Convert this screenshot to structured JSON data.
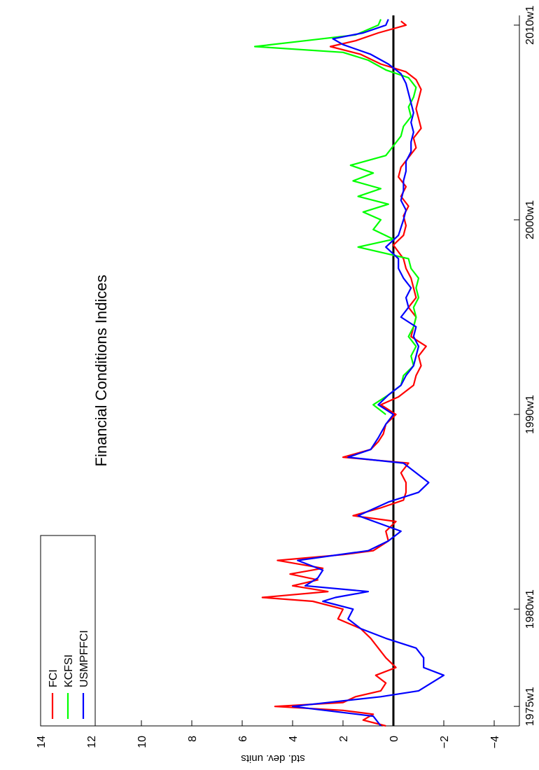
{
  "chart_data": {
    "type": "line",
    "title": "Financial Conditions Indices",
    "y_label": "std. dev. units",
    "xlim": [
      1974,
      2010.5
    ],
    "xticks": [
      {
        "value": 1975,
        "label": "1975w1"
      },
      {
        "value": 1980,
        "label": "1980w1"
      },
      {
        "value": 1990,
        "label": "1990w1"
      },
      {
        "value": 2000,
        "label": "2000w1"
      },
      {
        "value": 2010,
        "label": "2010w1"
      }
    ],
    "ylim": [
      -5,
      14
    ],
    "yticks": [
      {
        "value": -4,
        "label": "−4"
      },
      {
        "value": -2,
        "label": "−2"
      },
      0,
      2,
      4,
      6,
      8,
      10,
      12,
      14
    ],
    "legend": "upper left",
    "series": [
      {
        "name": "FCI",
        "color": "#ff0000",
        "x": [
          1974.0,
          1974.3,
          1974.6,
          1974.8,
          1975.0,
          1975.2,
          1975.5,
          1975.8,
          1976.2,
          1976.6,
          1977.0,
          1977.5,
          1978.0,
          1978.5,
          1979.0,
          1979.5,
          1980.0,
          1980.4,
          1980.6,
          1980.9,
          1981.2,
          1981.5,
          1981.8,
          1982.1,
          1982.5,
          1982.8,
          1983.0,
          1983.5,
          1984.0,
          1984.5,
          1984.8,
          1985.2,
          1985.6,
          1986.0,
          1986.5,
          1987.0,
          1987.5,
          1987.8,
          1988.2,
          1988.6,
          1989.0,
          1989.5,
          1990.0,
          1990.5,
          1990.9,
          1991.5,
          1992.0,
          1992.5,
          1993.0,
          1993.5,
          1994.0,
          1994.5,
          1995.0,
          1995.5,
          1996.0,
          1996.5,
          1997.0,
          1997.5,
          1998.0,
          1998.7,
          1999.2,
          1999.7,
          2000.2,
          2000.7,
          2001.2,
          2001.7,
          2002.2,
          2002.7,
          2003.2,
          2003.7,
          2004.2,
          2004.7,
          2005.2,
          2005.7,
          2006.2,
          2006.7,
          2007.2,
          2007.6,
          2008.0,
          2008.5,
          2008.9,
          2009.2,
          2009.6,
          2010.0,
          2010.2
        ],
        "values": [
          0.3,
          1.2,
          0.8,
          2.0,
          4.7,
          2.0,
          1.5,
          0.5,
          0.3,
          0.7,
          -0.1,
          0.3,
          0.6,
          0.9,
          1.3,
          2.2,
          2.0,
          3.2,
          5.2,
          2.6,
          4.0,
          3.0,
          4.1,
          2.8,
          4.6,
          2.0,
          0.8,
          0.2,
          0.3,
          -0.1,
          1.6,
          0.5,
          -0.4,
          -0.5,
          -0.5,
          -0.3,
          -0.6,
          2.0,
          0.9,
          0.6,
          0.4,
          0.3,
          -0.1,
          0.5,
          -0.2,
          -0.8,
          -0.9,
          -1.1,
          -1.0,
          -1.3,
          -0.7,
          -0.8,
          -0.9,
          -0.6,
          -0.9,
          -0.8,
          -0.7,
          -0.5,
          -0.4,
          0.0,
          -0.4,
          -0.5,
          -0.4,
          -0.6,
          -0.3,
          -0.5,
          -0.2,
          -0.3,
          -0.6,
          -0.9,
          -0.8,
          -1.1,
          -1.0,
          -0.9,
          -1.0,
          -1.1,
          -0.9,
          -0.5,
          0.5,
          1.3,
          2.5,
          1.5,
          0.6,
          -0.5,
          -0.3
        ]
      },
      {
        "name": "KCFSI",
        "color": "#00ff00",
        "x": [
          1990.0,
          1990.5,
          1991.0,
          1991.5,
          1992.0,
          1992.5,
          1993.0,
          1993.5,
          1994.0,
          1994.5,
          1995.0,
          1995.5,
          1996.0,
          1996.5,
          1997.0,
          1997.5,
          1998.0,
          1998.6,
          1999.0,
          1999.5,
          2000.0,
          2000.4,
          2000.8,
          2001.2,
          2001.6,
          2002.0,
          2002.4,
          2002.8,
          2003.3,
          2003.8,
          2004.3,
          2004.8,
          2005.3,
          2005.8,
          2006.3,
          2006.8,
          2007.3,
          2007.7,
          2008.2,
          2008.6,
          2008.9,
          2009.2,
          2009.5,
          2010.0,
          2010.3
        ],
        "values": [
          0.3,
          0.8,
          0.2,
          -0.3,
          -0.4,
          -0.8,
          -0.7,
          -0.9,
          -0.6,
          -0.8,
          -0.9,
          -0.8,
          -1.0,
          -0.9,
          -1.0,
          -0.7,
          -0.6,
          1.4,
          0.0,
          0.8,
          0.5,
          1.2,
          0.2,
          1.4,
          0.5,
          1.6,
          0.8,
          1.7,
          0.3,
          0.0,
          -0.3,
          -0.4,
          -0.7,
          -0.6,
          -0.8,
          -0.9,
          -0.6,
          0.3,
          1.0,
          2.0,
          5.5,
          3.5,
          1.5,
          0.6,
          0.5
        ]
      },
      {
        "name": "USMPFFCI",
        "color": "#0000ff",
        "x": [
          1974.0,
          1974.5,
          1975.0,
          1975.5,
          1975.8,
          1976.2,
          1976.6,
          1977.0,
          1977.5,
          1978.0,
          1978.5,
          1979.0,
          1979.5,
          1980.0,
          1980.4,
          1980.6,
          1980.9,
          1981.2,
          1981.6,
          1982.0,
          1982.5,
          1983.0,
          1983.5,
          1984.0,
          1984.8,
          1985.5,
          1986.0,
          1986.5,
          1987.0,
          1987.5,
          1987.8,
          1988.2,
          1988.8,
          1989.5,
          1990.0,
          1990.5,
          1991.0,
          1991.5,
          1992.0,
          1992.5,
          1993.0,
          1993.5,
          1994.0,
          1994.5,
          1995.0,
          1995.5,
          1996.0,
          1996.5,
          1997.0,
          1997.5,
          1998.0,
          1998.6,
          1999.2,
          2000.0,
          2000.5,
          2001.0,
          2001.5,
          2002.0,
          2002.5,
          2003.0,
          2003.5,
          2004.0,
          2004.5,
          2005.0,
          2005.5,
          2006.0,
          2006.5,
          2007.0,
          2007.5,
          2008.0,
          2008.5,
          2009.0,
          2009.3,
          2009.6,
          2010.0,
          2010.3
        ],
        "values": [
          0.5,
          0.8,
          4.0,
          0.5,
          -1.0,
          -1.5,
          -2.0,
          -1.2,
          -1.2,
          -0.9,
          0.3,
          1.3,
          1.8,
          1.6,
          2.8,
          2.3,
          1.0,
          3.5,
          3.0,
          2.8,
          3.8,
          1.0,
          0.2,
          -0.3,
          1.4,
          0.2,
          -1.0,
          -1.4,
          -0.9,
          -0.4,
          1.8,
          0.9,
          0.6,
          0.3,
          0.0,
          0.6,
          0.2,
          -0.3,
          -0.5,
          -0.8,
          -0.9,
          -1.0,
          -0.8,
          -0.9,
          -0.3,
          -0.6,
          -0.5,
          -0.7,
          -0.4,
          -0.2,
          -0.2,
          0.3,
          -0.2,
          -0.4,
          -0.5,
          -0.3,
          -0.4,
          -0.4,
          -0.5,
          -0.5,
          -0.7,
          -0.7,
          -0.8,
          -0.7,
          -0.8,
          -0.7,
          -0.6,
          -0.5,
          -0.3,
          0.2,
          0.9,
          2.0,
          2.4,
          1.2,
          0.3,
          0.2
        ]
      }
    ]
  }
}
